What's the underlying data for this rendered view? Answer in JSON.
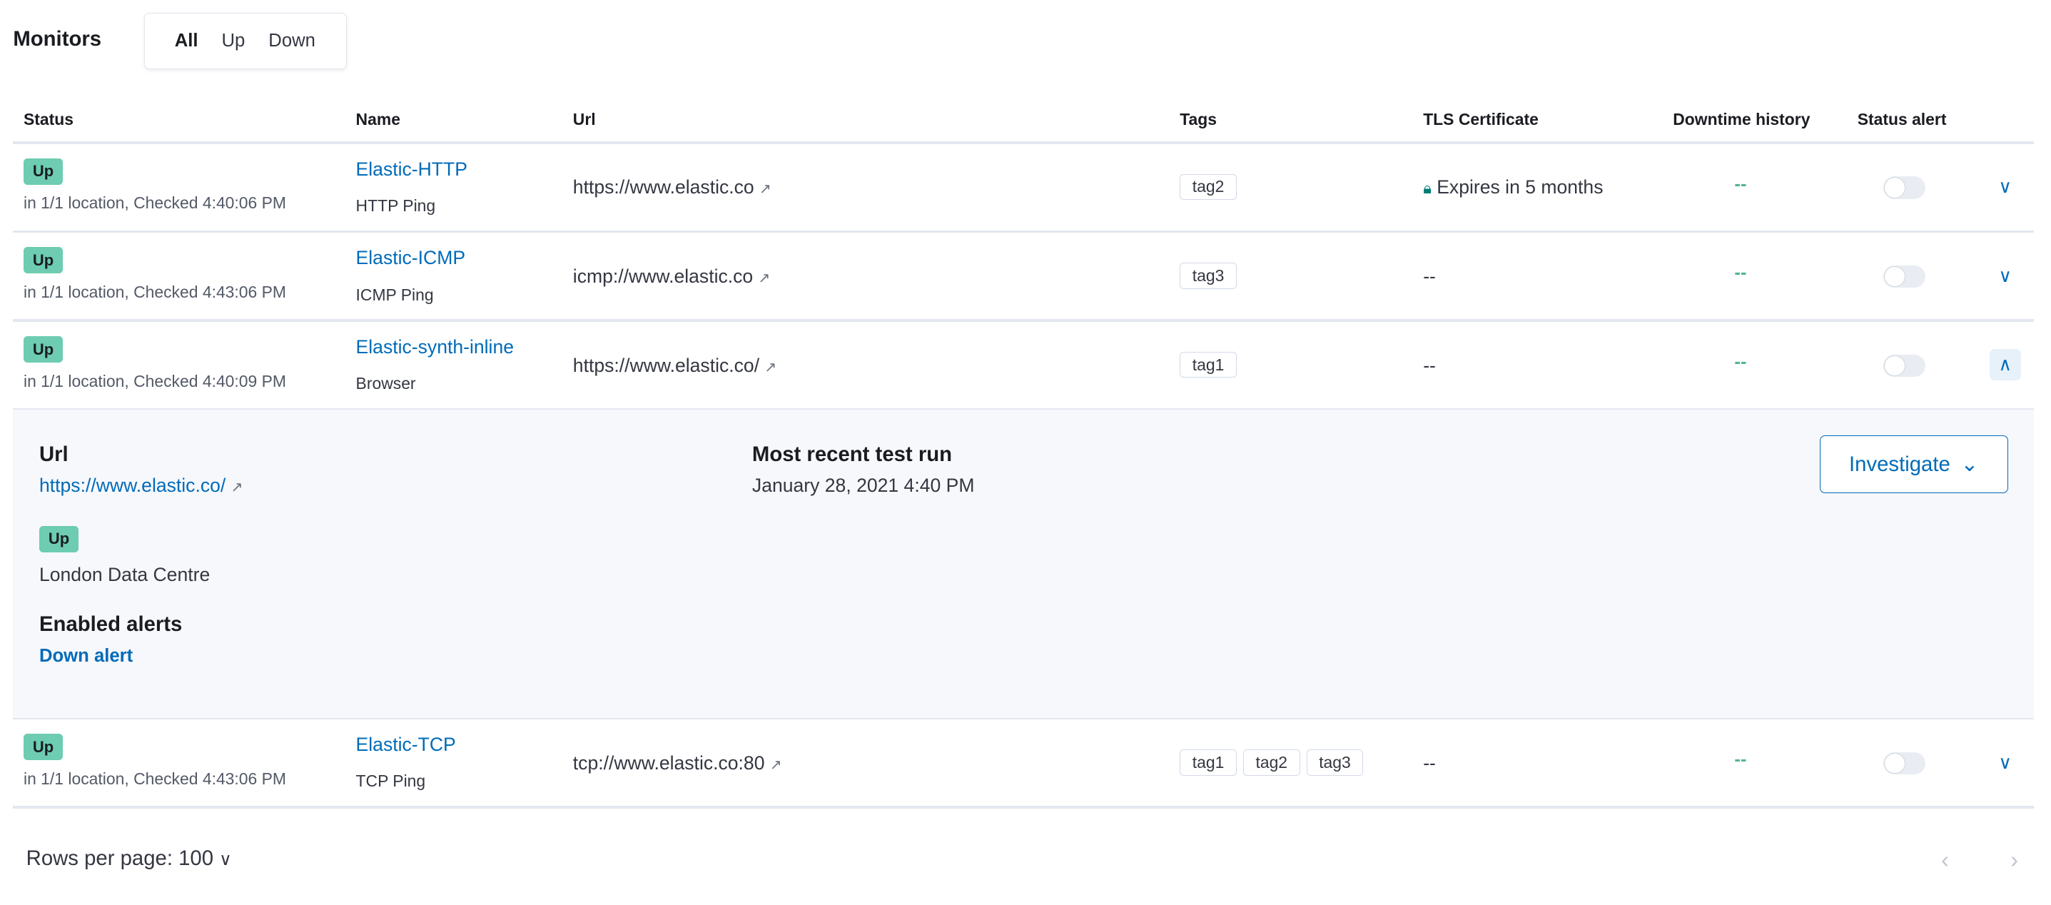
{
  "title": "Monitors",
  "filters": [
    {
      "label": "All",
      "active": true
    },
    {
      "label": "Up",
      "active": false
    },
    {
      "label": "Down",
      "active": false
    }
  ],
  "columns": [
    "Status",
    "Name",
    "Url",
    "Tags",
    "TLS Certificate",
    "Downtime history",
    "Status alert"
  ],
  "rows": [
    {
      "status": "Up",
      "checked": "in 1/1 location, Checked 4:40:06 PM",
      "name": "Elastic-HTTP",
      "type": "HTTP Ping",
      "url": "https://www.elastic.co",
      "tags": [
        "tag2"
      ],
      "tls": "Expires in 5 months",
      "tls_icon": "lock-icon",
      "downtime": "--",
      "alert_enabled": false,
      "expanded": false
    },
    {
      "status": "Up",
      "checked": "in 1/1 location, Checked 4:43:06 PM",
      "name": "Elastic-ICMP",
      "type": "ICMP Ping",
      "url": "icmp://www.elastic.co",
      "tags": [
        "tag3"
      ],
      "tls": "--",
      "downtime": "--",
      "alert_enabled": false,
      "expanded": false
    },
    {
      "status": "Up",
      "checked": "in 1/1 location, Checked 4:40:09 PM",
      "name": "Elastic-synth-inline",
      "type": "Browser",
      "url": "https://www.elastic.co/",
      "tags": [
        "tag1"
      ],
      "tls": "--",
      "downtime": "--",
      "alert_enabled": false,
      "expanded": true
    },
    {
      "status": "Up",
      "checked": "in 1/1 location, Checked 4:43:06 PM",
      "name": "Elastic-TCP",
      "type": "TCP Ping",
      "url": "tcp://www.elastic.co:80",
      "tags": [
        "tag1",
        "tag2",
        "tag3"
      ],
      "tls": "--",
      "downtime": "--",
      "alert_enabled": false,
      "expanded": false
    }
  ],
  "details": {
    "url_heading": "Url",
    "url": "https://www.elastic.co/",
    "status": "Up",
    "location": "London Data Centre",
    "alerts_heading": "Enabled alerts",
    "alert": "Down alert",
    "recent_heading": "Most recent test run",
    "recent_time": "January 28, 2021 4:40 PM",
    "investigate_label": "Investigate"
  },
  "pagination": {
    "rows_per_page_label": "Rows per page: 100",
    "prev": "‹",
    "next": "›"
  },
  "colors": {
    "up": "#6dccb1",
    "link": "#006bb8",
    "downtime": "#54b399"
  }
}
